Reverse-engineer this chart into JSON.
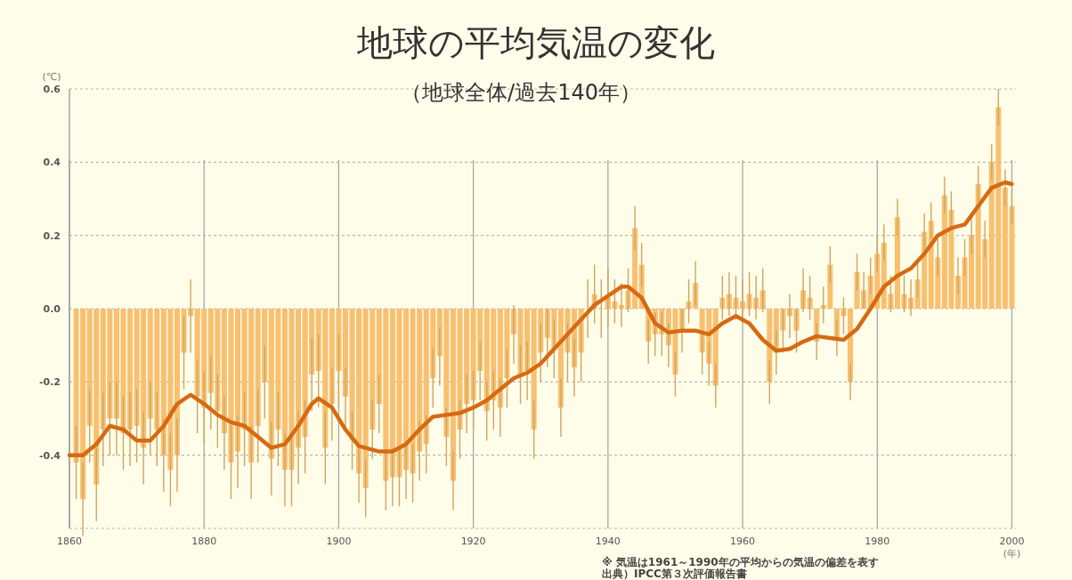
{
  "chart_data": {
    "type": "bar",
    "title": "地球の平均気温の変化",
    "subtitle": "（地球全体/過去140年）",
    "ylabel": "(℃)",
    "xlabel": "(年)",
    "annotations": [
      "※ 気温は1961～1990年の平均からの気温の偏差を表す",
      "出典）IPCC第３次評価報告書"
    ],
    "xlim": [
      1860,
      2000.6
    ],
    "xticks": [
      1860,
      1880,
      1900,
      1920,
      1940,
      1960,
      1980,
      2000
    ],
    "ylim": [
      -0.6,
      0.6
    ],
    "yticks": [
      0.6,
      0.4,
      0.2,
      {
        "value": 0,
        "label": "0.0"
      },
      {
        "value": -0.2,
        "label": "-0.2"
      },
      {
        "value": -0.4,
        "label": "-0.4"
      },
      {
        "value": -0.6,
        "label": null
      }
    ],
    "grid": true,
    "series": [
      {
        "color": "#f8c070",
        "x": [
          1861,
          1862,
          1863,
          1864,
          1865,
          1866,
          1867,
          1868,
          1869,
          1870,
          1871,
          1872,
          1873,
          1874,
          1875,
          1876,
          1877,
          1878,
          1879,
          1880,
          1881,
          1882,
          1883,
          1884,
          1885,
          1886,
          1887,
          1888,
          1889,
          1890,
          1891,
          1892,
          1893,
          1894,
          1895,
          1896,
          1897,
          1898,
          1899,
          1900,
          1901,
          1902,
          1903,
          1904,
          1905,
          1906,
          1907,
          1908,
          1909,
          1910,
          1911,
          1912,
          1913,
          1914,
          1915,
          1916,
          1917,
          1918,
          1919,
          1920,
          1921,
          1922,
          1923,
          1924,
          1925,
          1926,
          1927,
          1928,
          1929,
          1930,
          1931,
          1932,
          1933,
          1934,
          1935,
          1936,
          1937,
          1938,
          1939,
          1940,
          1941,
          1942,
          1943,
          1944,
          1945,
          1946,
          1947,
          1948,
          1949,
          1950,
          1951,
          1952,
          1953,
          1954,
          1955,
          1956,
          1957,
          1958,
          1959,
          1960,
          1961,
          1962,
          1963,
          1964,
          1965,
          1966,
          1967,
          1968,
          1969,
          1970,
          1971,
          1972,
          1973,
          1974,
          1975,
          1976,
          1977,
          1978,
          1979,
          1980,
          1981,
          1982,
          1983,
          1984,
          1985,
          1986,
          1987,
          1988,
          1989,
          1990,
          1991,
          1992,
          1993,
          1994,
          1995,
          1996,
          1997,
          1998,
          1999,
          2000
        ],
        "values": [
          -0.42,
          -0.52,
          -0.32,
          -0.48,
          -0.33,
          -0.3,
          -0.3,
          -0.34,
          -0.33,
          -0.32,
          -0.38,
          -0.3,
          -0.33,
          -0.4,
          -0.44,
          -0.4,
          -0.12,
          -0.02,
          -0.24,
          -0.27,
          -0.23,
          -0.28,
          -0.34,
          -0.42,
          -0.39,
          -0.33,
          -0.42,
          -0.32,
          -0.2,
          -0.41,
          -0.33,
          -0.44,
          -0.44,
          -0.38,
          -0.35,
          -0.18,
          -0.17,
          -0.38,
          -0.26,
          -0.17,
          -0.24,
          -0.36,
          -0.45,
          -0.49,
          -0.33,
          -0.26,
          -0.47,
          -0.46,
          -0.46,
          -0.44,
          -0.45,
          -0.39,
          -0.37,
          -0.19,
          -0.13,
          -0.35,
          -0.47,
          -0.33,
          -0.26,
          -0.25,
          -0.17,
          -0.28,
          -0.25,
          -0.27,
          -0.19,
          -0.07,
          -0.18,
          -0.17,
          -0.33,
          -0.12,
          -0.08,
          -0.11,
          -0.27,
          -0.12,
          -0.16,
          -0.12,
          0.0,
          0.04,
          0.0,
          0.03,
          0.02,
          0.01,
          0.05,
          0.22,
          0.12,
          -0.09,
          -0.07,
          -0.07,
          -0.1,
          -0.18,
          -0.06,
          0.02,
          0.07,
          -0.12,
          -0.15,
          -0.21,
          0.03,
          0.04,
          0.03,
          0.02,
          0.04,
          0.03,
          0.05,
          -0.2,
          -0.12,
          -0.06,
          -0.02,
          -0.06,
          0.05,
          0.03,
          -0.09,
          0.01,
          0.12,
          -0.08,
          -0.02,
          -0.2,
          0.1,
          0.05,
          0.09,
          0.15,
          0.18,
          0.04,
          0.25,
          0.04,
          0.03,
          0.08,
          0.21,
          0.24,
          0.14,
          0.31,
          0.27,
          0.09,
          0.14,
          0.2,
          0.34,
          0.19,
          0.4,
          0.55,
          0.33,
          0.28
        ],
        "errors": [
          0.1,
          0.1,
          0.1,
          0.1,
          0.1,
          0.1,
          0.1,
          0.1,
          0.1,
          0.1,
          0.1,
          0.1,
          0.1,
          0.1,
          0.1,
          0.1,
          0.1,
          0.1,
          0.1,
          0.1,
          0.1,
          0.1,
          0.1,
          0.1,
          0.1,
          0.1,
          0.1,
          0.1,
          0.1,
          0.1,
          0.1,
          0.1,
          0.1,
          0.1,
          0.1,
          0.1,
          0.1,
          0.1,
          0.1,
          0.1,
          0.08,
          0.08,
          0.08,
          0.08,
          0.08,
          0.08,
          0.08,
          0.08,
          0.08,
          0.08,
          0.08,
          0.08,
          0.08,
          0.08,
          0.08,
          0.08,
          0.08,
          0.08,
          0.08,
          0.08,
          0.08,
          0.08,
          0.08,
          0.08,
          0.08,
          0.08,
          0.08,
          0.08,
          0.08,
          0.08,
          0.08,
          0.08,
          0.08,
          0.08,
          0.08,
          0.08,
          0.08,
          0.08,
          0.08,
          0.08,
          0.06,
          0.06,
          0.06,
          0.06,
          0.06,
          0.06,
          0.06,
          0.06,
          0.06,
          0.06,
          0.06,
          0.06,
          0.06,
          0.06,
          0.06,
          0.06,
          0.06,
          0.06,
          0.06,
          0.06,
          0.06,
          0.06,
          0.06,
          0.06,
          0.06,
          0.06,
          0.06,
          0.06,
          0.06,
          0.06,
          0.05,
          0.05,
          0.05,
          0.05,
          0.05,
          0.05,
          0.05,
          0.05,
          0.05,
          0.05,
          0.05,
          0.05,
          0.05,
          0.05,
          0.05,
          0.05,
          0.05,
          0.05,
          0.05,
          0.05,
          0.05,
          0.05,
          0.05,
          0.05,
          0.05,
          0.05,
          0.05,
          0.05,
          0.05,
          0.05
        ]
      },
      {
        "type": "line",
        "color": "#d66a12",
        "x": [
          1860,
          1862,
          1864,
          1866,
          1868,
          1870,
          1872,
          1874,
          1876,
          1878,
          1880,
          1882,
          1884,
          1886,
          1888,
          1890,
          1892,
          1894,
          1896,
          1897,
          1899,
          1901,
          1903,
          1906,
          1908,
          1910,
          1912,
          1914,
          1916,
          1918,
          1920,
          1922,
          1924,
          1926,
          1928,
          1930,
          1932,
          1934,
          1936,
          1938,
          1940,
          1942,
          1943,
          1945,
          1947,
          1949,
          1951,
          1953,
          1955,
          1957,
          1959,
          1961,
          1963,
          1965,
          1967,
          1969,
          1971,
          1973,
          1975,
          1977,
          1979,
          1981,
          1983,
          1985,
          1987,
          1989,
          1991,
          1993,
          1995,
          1997,
          1999,
          2000
        ],
        "values": [
          -0.4,
          -0.4,
          -0.37,
          -0.32,
          -0.33,
          -0.36,
          -0.36,
          -0.32,
          -0.26,
          -0.235,
          -0.26,
          -0.29,
          -0.31,
          -0.32,
          -0.35,
          -0.38,
          -0.37,
          -0.32,
          -0.26,
          -0.245,
          -0.27,
          -0.33,
          -0.375,
          -0.39,
          -0.39,
          -0.37,
          -0.33,
          -0.295,
          -0.29,
          -0.285,
          -0.27,
          -0.25,
          -0.22,
          -0.19,
          -0.175,
          -0.15,
          -0.11,
          -0.07,
          -0.03,
          0.01,
          0.035,
          0.06,
          0.06,
          0.03,
          -0.04,
          -0.065,
          -0.06,
          -0.06,
          -0.07,
          -0.04,
          -0.02,
          -0.04,
          -0.085,
          -0.115,
          -0.11,
          -0.09,
          -0.075,
          -0.08,
          -0.085,
          -0.055,
          0.0,
          0.06,
          0.09,
          0.11,
          0.15,
          0.2,
          0.22,
          0.23,
          0.28,
          0.33,
          0.345,
          0.34
        ]
      }
    ]
  }
}
